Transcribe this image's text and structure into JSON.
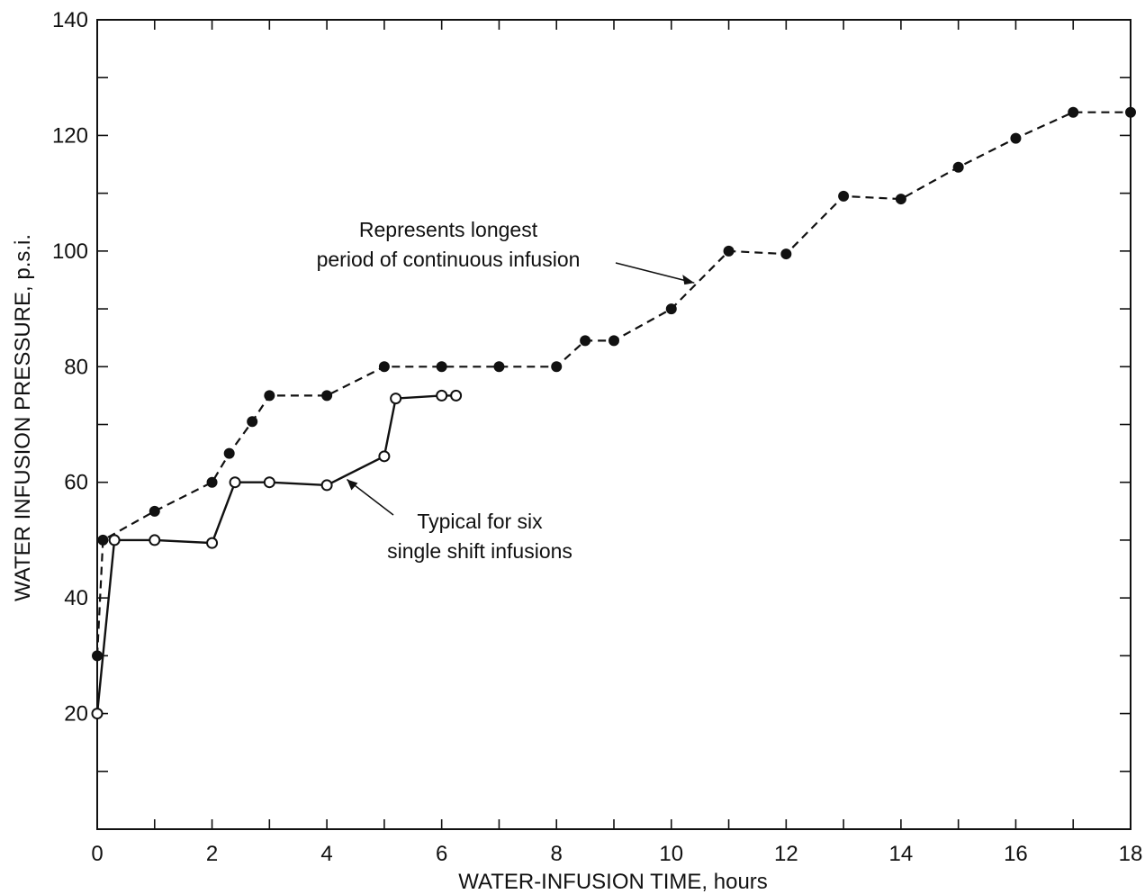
{
  "chart_data": {
    "type": "line",
    "xlabel": "WATER-INFUSION TIME, hours",
    "ylabel": "WATER INFUSION PRESSURE, p.s.i.",
    "xlim": [
      0,
      18
    ],
    "ylim": [
      0,
      140
    ],
    "x_ticks": [
      "0",
      "2",
      "4",
      "6",
      "8",
      "10",
      "12",
      "14",
      "16",
      "18"
    ],
    "y_ticks": [
      "20",
      "40",
      "60",
      "80",
      "100",
      "120",
      "140"
    ],
    "grid": false,
    "legend": "none",
    "series": [
      {
        "style": "dashed line, filled circle markers",
        "color": "#111111",
        "x": [
          0.0,
          0.1,
          1.0,
          2.0,
          2.3,
          2.7,
          3.0,
          4.0,
          5.0,
          6.0,
          7.0,
          8.0,
          8.5,
          9.0,
          10.0,
          11.0,
          12.0,
          13.0,
          14.0,
          15.0,
          16.0,
          17.0,
          18.0
        ],
        "y": [
          30,
          50,
          55,
          60,
          65,
          70.5,
          75,
          75,
          80,
          80,
          80,
          80,
          84.5,
          84.5,
          90,
          100,
          99.5,
          109.5,
          109,
          114.5,
          119.5,
          124,
          124
        ]
      },
      {
        "style": "solid line, open circle markers",
        "color": "#111111",
        "x": [
          0.0,
          0.3,
          1.0,
          2.0,
          2.4,
          3.0,
          4.0,
          5.0,
          5.2,
          6.0,
          6.25
        ],
        "y": [
          20,
          50,
          50,
          49.5,
          60,
          60,
          59.5,
          64.5,
          74.5,
          75,
          75
        ]
      }
    ],
    "annotations": [
      {
        "text_lines": [
          "Represents longest",
          "period of continuous infusion"
        ],
        "target_series": 0
      },
      {
        "text_lines": [
          "Typical for six",
          "single shift infusions"
        ],
        "target_series": 1
      }
    ]
  }
}
